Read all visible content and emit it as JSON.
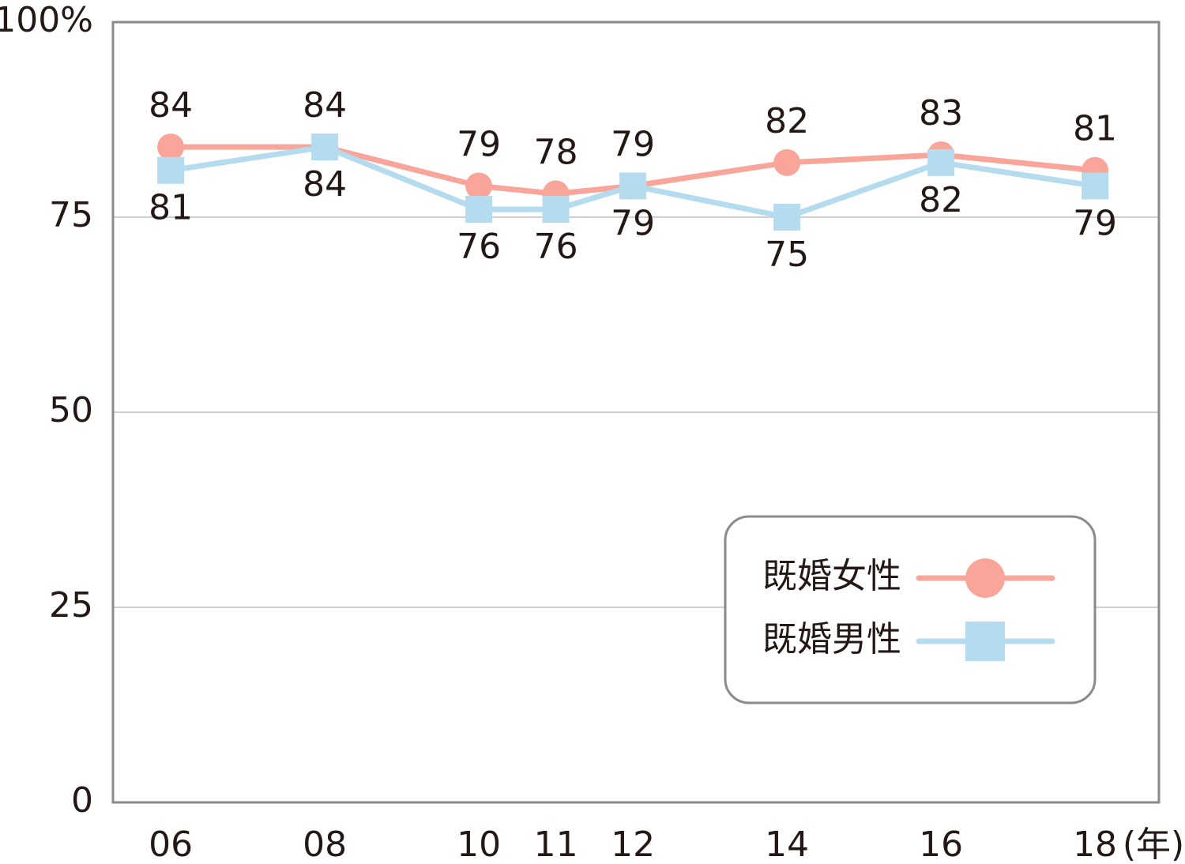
{
  "chart_data": {
    "type": "line",
    "x": [
      6,
      8,
      10,
      11,
      12,
      14,
      16,
      18
    ],
    "xticks": [
      {
        "value": 6,
        "label": "06"
      },
      {
        "value": 8,
        "label": "08"
      },
      {
        "value": 10,
        "label": "10"
      },
      {
        "value": 11,
        "label": "11"
      },
      {
        "value": 12,
        "label": "12"
      },
      {
        "value": 14,
        "label": "14"
      },
      {
        "value": 16,
        "label": "16"
      },
      {
        "value": 18,
        "label": "18"
      }
    ],
    "xlim": [
      5.25,
      18.83
    ],
    "x_label": "(年)",
    "ylim": [
      0,
      100
    ],
    "yticks": [
      0,
      25,
      50,
      75,
      {
        "value": 100,
        "label": "100%"
      }
    ],
    "grid": true,
    "legend": "lower right",
    "series": [
      {
        "name": "既婚女性",
        "color": "#f9a59a",
        "marker": "circle",
        "values": [
          84,
          84,
          79,
          78,
          79,
          82,
          83,
          81
        ]
      },
      {
        "name": "既婚男性",
        "color": "#b5dbef",
        "marker": "square",
        "values": [
          81,
          84,
          76,
          76,
          79,
          75,
          82,
          79
        ]
      }
    ]
  }
}
